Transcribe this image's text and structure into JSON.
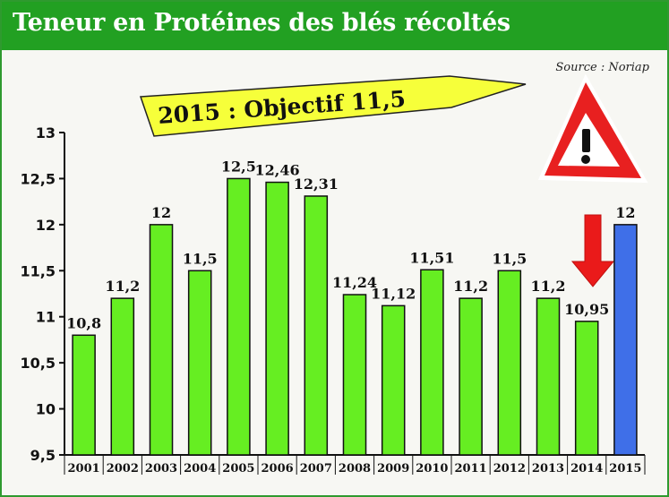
{
  "chart_data": {
    "type": "bar",
    "title": "Teneur en Protéines des blés récoltés",
    "source": "Source : Noriap",
    "banner": "2015 : Objectif 11,5",
    "categories": [
      "2001",
      "2002",
      "2003",
      "2004",
      "2005",
      "2006",
      "2007",
      "2008",
      "2009",
      "2010",
      "2011",
      "2012",
      "2013",
      "2014",
      "2015"
    ],
    "values": [
      10.8,
      11.2,
      12,
      11.5,
      12.5,
      12.46,
      12.31,
      11.24,
      11.12,
      11.51,
      11.2,
      11.5,
      11.2,
      10.95,
      12
    ],
    "value_labels": [
      "10,8",
      "11,2",
      "12",
      "11,5",
      "12,5",
      "12,46",
      "12,31",
      "11,24",
      "11,12",
      "11,51",
      "11,2",
      "11,5",
      "11,2",
      "10,95",
      "12"
    ],
    "ylim": [
      9.5,
      13
    ],
    "yticks": [
      9.5,
      10,
      10.5,
      11,
      11.5,
      12,
      12.5,
      13
    ],
    "ytick_labels": [
      "9,5",
      "10",
      "10,5",
      "11",
      "11,5",
      "12",
      "12,5",
      "13"
    ],
    "grid": false,
    "colors": {
      "bar": "#66ee22",
      "bar_highlight": "#3f6fe8",
      "title_bar": "#22a022",
      "banner": "#f6ff3a",
      "warning_red": "#e82020",
      "arrow_red": "#ea1a1a"
    },
    "highlight_index": 14,
    "icons": [
      "warning-triangle-icon",
      "down-arrow-icon"
    ]
  }
}
